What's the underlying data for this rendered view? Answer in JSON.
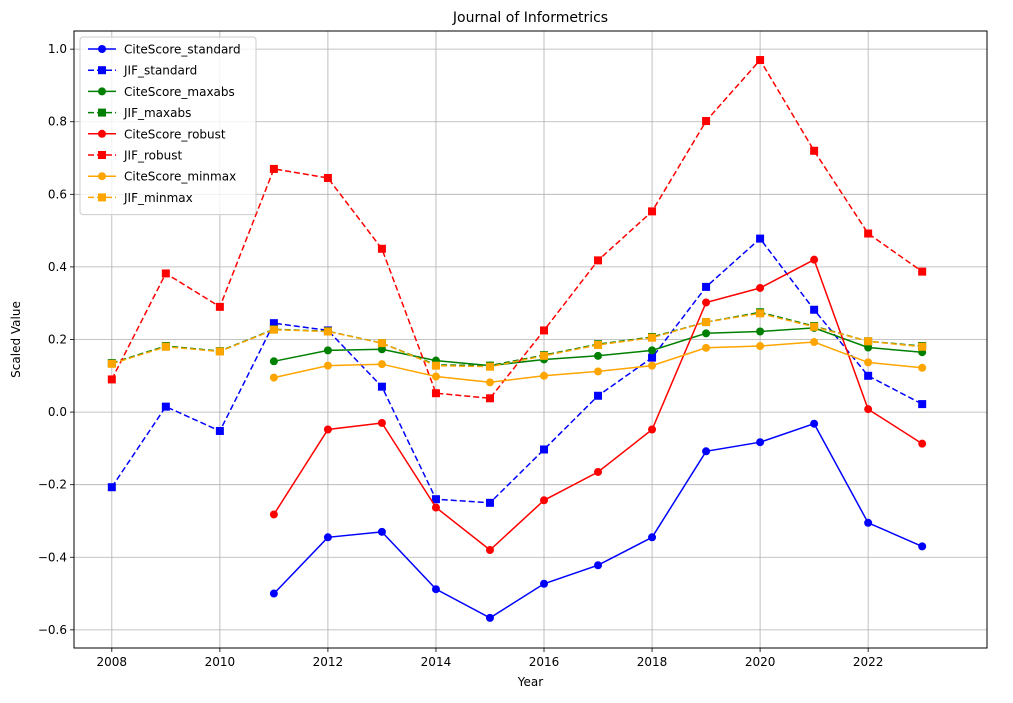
{
  "chart_data": {
    "type": "line",
    "title": "Journal of Informetrics",
    "xlabel": "Year",
    "ylabel": "Scaled Value",
    "xlim": [
      2007.3,
      2024.2
    ],
    "ylim": [
      -0.65,
      1.05
    ],
    "xticks": [
      2008,
      2010,
      2012,
      2014,
      2016,
      2018,
      2020,
      2022
    ],
    "yticks": [
      -0.6,
      -0.4,
      -0.2,
      0.0,
      0.2,
      0.4,
      0.6,
      0.8,
      1.0
    ],
    "ytick_labels": [
      "−0.6",
      "−0.4",
      "−0.2",
      "0.0",
      "0.2",
      "0.4",
      "0.6",
      "0.8",
      "1.0"
    ],
    "grid": true,
    "legend_position": "top-left",
    "x": [
      2008,
      2009,
      2010,
      2011,
      2012,
      2013,
      2014,
      2015,
      2016,
      2017,
      2018,
      2019,
      2020,
      2021,
      2022,
      2023
    ],
    "series": [
      {
        "name": "CiteScore_standard",
        "color": "#0000ff",
        "dash": "solid",
        "marker": "circle",
        "values": [
          null,
          null,
          null,
          -0.5,
          -0.345,
          -0.33,
          -0.488,
          -0.567,
          -0.473,
          -0.422,
          -0.345,
          -0.108,
          -0.083,
          -0.032,
          -0.305,
          -0.37
        ]
      },
      {
        "name": "JIF_standard",
        "color": "#0000ff",
        "dash": "dashed",
        "marker": "square",
        "values": [
          -0.207,
          0.015,
          -0.052,
          0.245,
          0.225,
          0.07,
          -0.24,
          -0.25,
          -0.103,
          0.045,
          0.15,
          0.345,
          0.478,
          0.282,
          0.1,
          0.022
        ]
      },
      {
        "name": "CiteScore_maxabs",
        "color": "#008000",
        "dash": "solid",
        "marker": "circle",
        "values": [
          null,
          null,
          null,
          0.14,
          0.17,
          0.173,
          0.142,
          0.128,
          0.145,
          0.155,
          0.17,
          0.217,
          0.222,
          0.232,
          0.178,
          0.165
        ]
      },
      {
        "name": "JIF_maxabs",
        "color": "#008000",
        "dash": "dashed",
        "marker": "square",
        "values": [
          0.135,
          0.182,
          0.168,
          0.228,
          0.223,
          0.19,
          0.13,
          0.128,
          0.157,
          0.187,
          0.207,
          0.248,
          0.275,
          0.237,
          0.195,
          0.182
        ]
      },
      {
        "name": "CiteScore_robust",
        "color": "#ff0000",
        "dash": "solid",
        "marker": "circle",
        "values": [
          null,
          null,
          null,
          -0.282,
          -0.048,
          -0.03,
          -0.263,
          -0.38,
          -0.243,
          -0.165,
          -0.048,
          0.302,
          0.342,
          0.42,
          0.008,
          -0.087
        ]
      },
      {
        "name": "JIF_robust",
        "color": "#ff0000",
        "dash": "dashed",
        "marker": "square",
        "values": [
          0.09,
          0.382,
          0.29,
          0.67,
          0.645,
          0.45,
          0.052,
          0.038,
          0.225,
          0.418,
          0.553,
          0.802,
          0.97,
          0.72,
          0.492,
          0.387
        ]
      },
      {
        "name": "CiteScore_minmax",
        "color": "#ffa500",
        "dash": "solid",
        "marker": "circle",
        "values": [
          null,
          null,
          null,
          0.095,
          0.128,
          0.132,
          0.098,
          0.082,
          0.1,
          0.112,
          0.128,
          0.177,
          0.182,
          0.193,
          0.137,
          0.122
        ]
      },
      {
        "name": "JIF_minmax",
        "color": "#ffa500",
        "dash": "dashed",
        "marker": "square",
        "values": [
          0.133,
          0.18,
          0.167,
          0.227,
          0.222,
          0.19,
          0.128,
          0.125,
          0.155,
          0.185,
          0.205,
          0.248,
          0.272,
          0.235,
          0.195,
          0.18
        ]
      }
    ]
  }
}
